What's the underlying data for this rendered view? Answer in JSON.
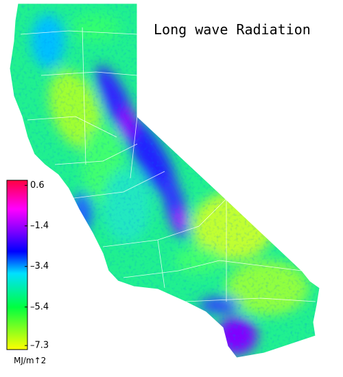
{
  "title": "Long wave Radiation",
  "colorbar": {
    "unit": "MJ/m↑2",
    "lim": [
      -7.5,
      0.85
    ],
    "ticks": [
      0.6,
      {
        "value": -1.4,
        "label": "–1.4"
      },
      {
        "value": -3.4,
        "label": "–3.4"
      },
      {
        "value": -5.4,
        "label": "–5.4"
      },
      {
        "value": -7.3,
        "label": "–7.3"
      }
    ]
  }
}
